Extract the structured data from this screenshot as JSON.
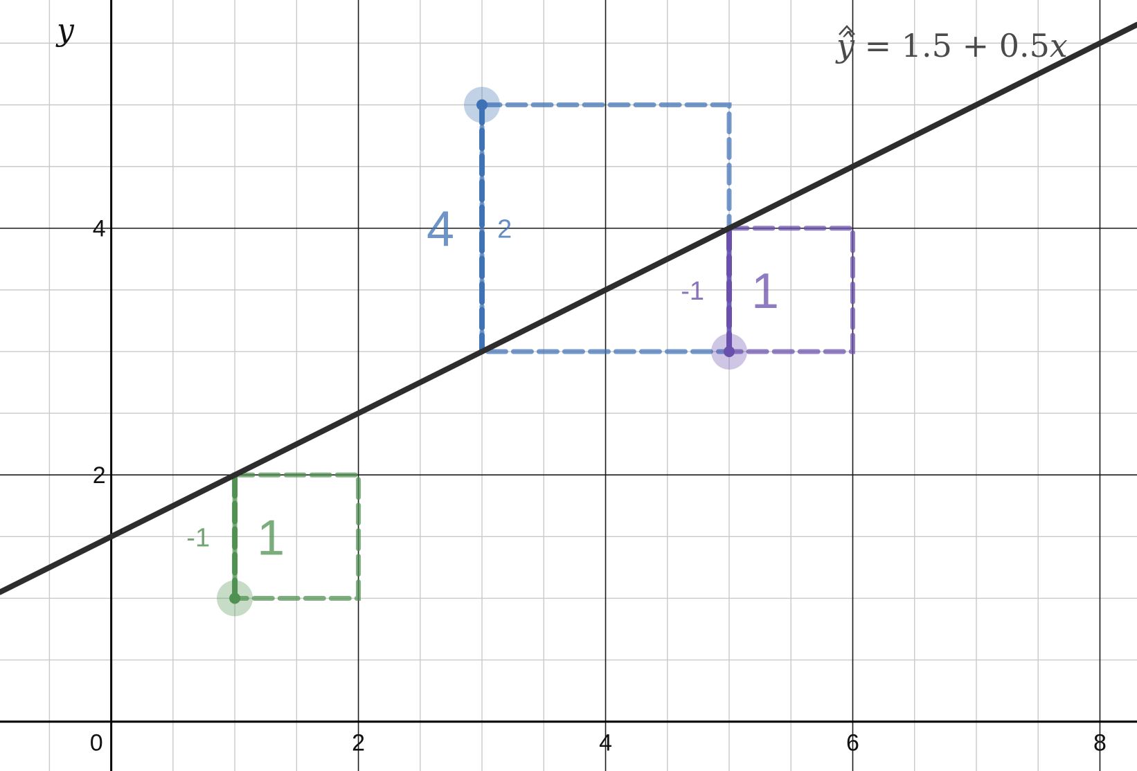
{
  "chart_data": {
    "type": "scatter",
    "title": "",
    "xlabel": "",
    "ylabel": "y",
    "xlim": [
      -0.9,
      8.3
    ],
    "ylim": [
      -0.4,
      5.85
    ],
    "grid": true,
    "x_ticks": [
      0,
      2,
      4,
      6,
      8
    ],
    "y_ticks": [
      2,
      4
    ],
    "x_tick_labels": [
      "0",
      "2",
      "4",
      "6",
      "8"
    ],
    "y_tick_labels": [
      "2",
      "4"
    ],
    "regression": {
      "intercept": 1.5,
      "slope": 0.5,
      "equation": {
        "lhs": "ŷ",
        "eq": " = 1.5 + 0.5",
        "var": "x"
      }
    },
    "points": [
      {
        "name": "green",
        "x": 1,
        "y": 1,
        "residual": -1,
        "residual_label": "-1",
        "square_label": "1",
        "color": "#4f9150"
      },
      {
        "name": "blue",
        "x": 3,
        "y": 5,
        "residual": 2,
        "residual_label": "2",
        "square_label": "4",
        "color": "#3f72b5"
      },
      {
        "name": "purple",
        "x": 5,
        "y": 3,
        "residual": -1,
        "residual_label": "-1",
        "square_label": "1",
        "color": "#6a4fad"
      }
    ]
  }
}
